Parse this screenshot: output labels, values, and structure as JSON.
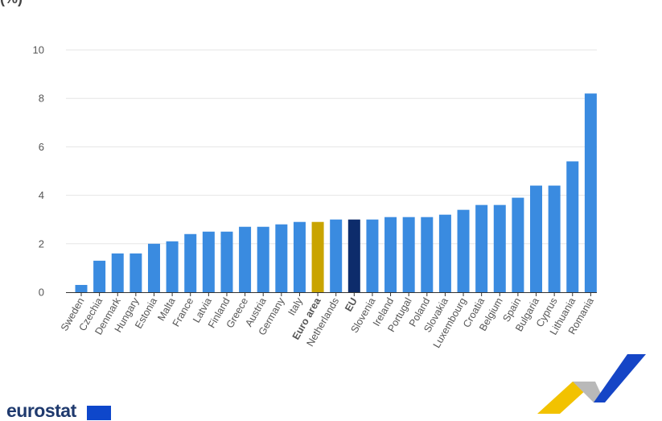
{
  "header": {
    "title_fragment": "(%)"
  },
  "brand": {
    "name": "eurostat"
  },
  "colors": {
    "bar": "#3a8be0",
    "euro_area": "#c9a400",
    "eu": "#0d2c6b",
    "logo_yellow": "#f2c200",
    "logo_blue": "#1545c6",
    "logo_grey": "#b9b9b9"
  },
  "chart_data": {
    "type": "bar",
    "categories": [
      "Sweden",
      "Czechia",
      "Denmark",
      "Hungary",
      "Estonia",
      "Malta",
      "France",
      "Latvia",
      "Finland",
      "Greece",
      "Austria",
      "Germany",
      "Italy",
      "Euro area",
      "Netherlands",
      "EU",
      "Slovenia",
      "Ireland",
      "Portugal",
      "Poland",
      "Slovakia",
      "Luxembourg",
      "Croatia",
      "Belgium",
      "Spain",
      "Bulgaria",
      "Cyprus",
      "Lithuania",
      "Romania"
    ],
    "values": [
      0.3,
      1.3,
      1.6,
      1.6,
      2.0,
      2.1,
      2.4,
      2.5,
      2.5,
      2.7,
      2.7,
      2.8,
      2.9,
      2.9,
      3.0,
      3.0,
      3.0,
      3.1,
      3.1,
      3.1,
      3.2,
      3.4,
      3.6,
      3.6,
      3.9,
      4.4,
      4.4,
      5.4,
      8.2
    ],
    "highlight": {
      "Euro area": "euro_area",
      "EU": "eu"
    },
    "yticks": [
      0,
      2,
      4,
      6,
      8,
      10
    ],
    "ylim": [
      0,
      10
    ],
    "grid": true,
    "title": "",
    "xlabel": "",
    "ylabel": ""
  }
}
